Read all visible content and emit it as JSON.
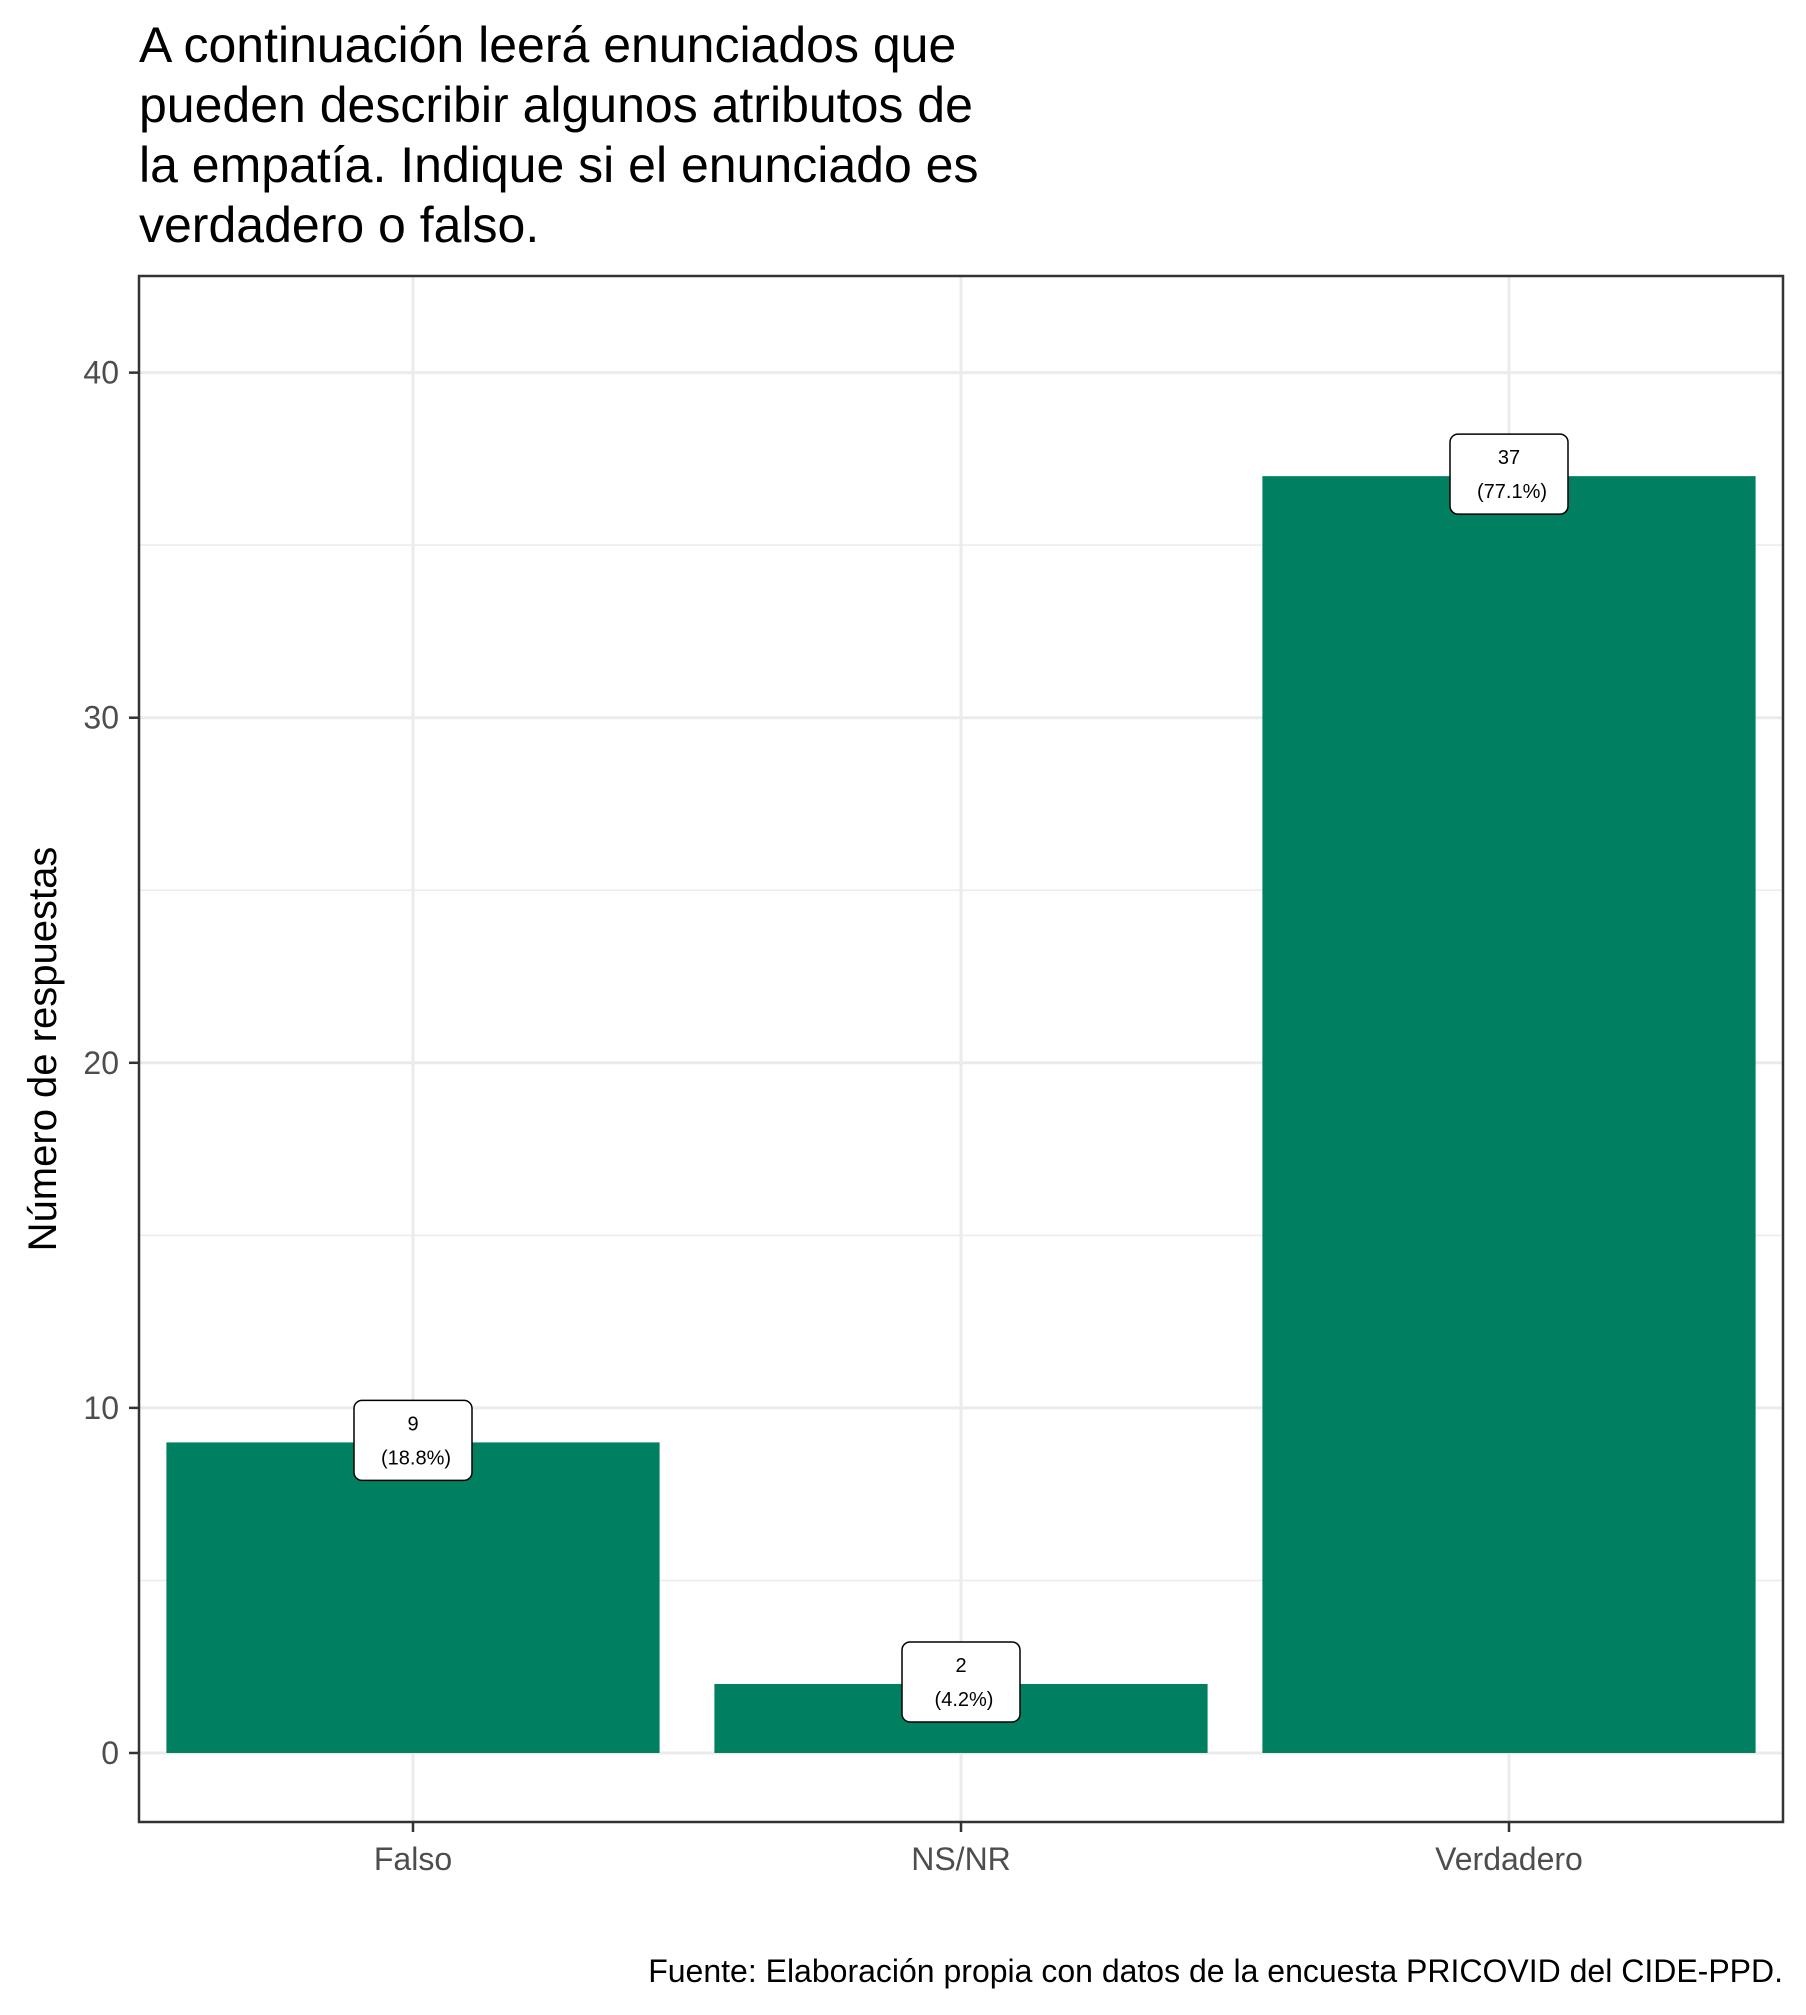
{
  "chart_data": {
    "type": "bar",
    "title_lines": [
      "A continuación leerá enunciados que",
      "pueden describir algunos atributos de",
      "la empatía. Indique si el enunciado es",
      "verdadero o falso."
    ],
    "xlabel": "",
    "ylabel": "Número de respuestas",
    "categories": [
      "Falso",
      "NS/NR",
      "Verdadero"
    ],
    "values": [
      9,
      2,
      37
    ],
    "value_labels": [
      "9",
      "2",
      "37"
    ],
    "percent_labels": [
      "(18.8%)",
      "(4.2%)",
      "(77.1%)"
    ],
    "ylim": [
      -2,
      42.8
    ],
    "yticks": [
      0,
      10,
      20,
      30,
      40
    ],
    "ytick_labels": [
      "0",
      "10",
      "20",
      "30",
      "40"
    ],
    "grid": true,
    "bar_color": "#008060",
    "grid_color": "#ebebeb",
    "caption": "Fuente: Elaboración propia con datos de la encuesta PRICOVID del CIDE-PPD."
  }
}
